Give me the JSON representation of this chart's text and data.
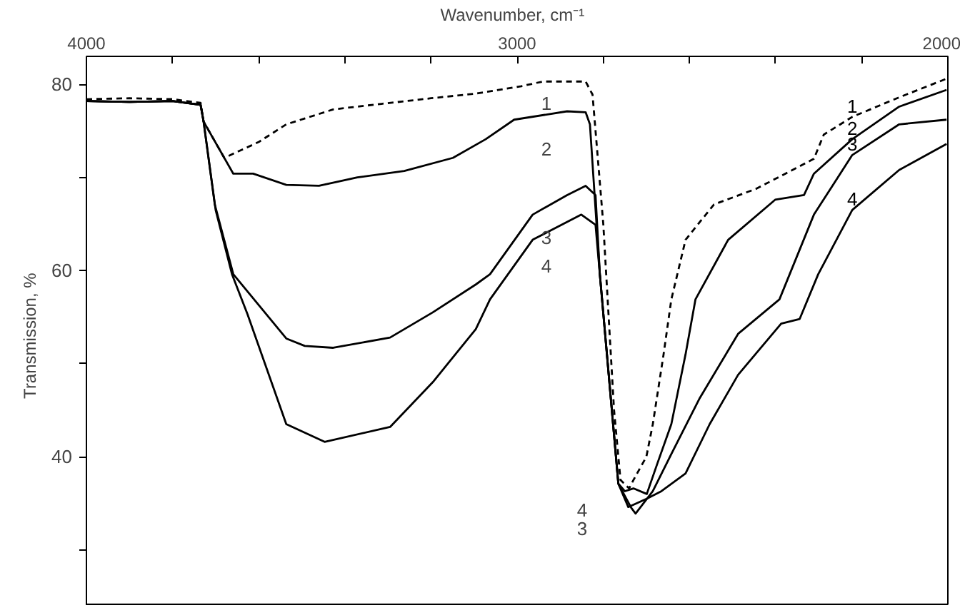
{
  "chart_data": {
    "type": "line",
    "xlabel": "Wavenumber,   cm⁻¹",
    "ylabel": "Transmission,   %",
    "xlim": [
      4000,
      2000
    ],
    "ylim": [
      24,
      83
    ],
    "xticks": [
      4000,
      {
        "value": 3800,
        "label": null
      },
      {
        "value": 3600,
        "label": null
      },
      {
        "value": 3400,
        "label": null
      },
      {
        "value": 3200,
        "label": null
      },
      3000,
      {
        "value": 2800,
        "label": null
      },
      {
        "value": 2600,
        "label": null
      },
      {
        "value": 2400,
        "label": null
      },
      {
        "value": 2200,
        "label": null
      },
      2000
    ],
    "yticks": [
      {
        "value": 30,
        "label": null
      },
      40,
      {
        "value": 50,
        "label": null
      },
      60,
      {
        "value": 70,
        "label": null
      },
      80
    ],
    "grid": false,
    "marker": "none",
    "series": [
      {
        "name": "1",
        "color": "#000000",
        "line_style": "dashed",
        "x": [
          4000,
          3900,
          3800,
          3735,
          3728,
          3680,
          3600,
          3536,
          3427,
          3315,
          3200,
          3096,
          2990,
          2940,
          2841,
          2825,
          2800,
          2775,
          2760,
          2740,
          2730,
          2700,
          2685,
          2660,
          2642,
          2609,
          2543,
          2444,
          2344,
          2311,
          2288,
          2222,
          2113,
          2003
        ],
        "values": [
          78.4,
          78.5,
          78.4,
          78.0,
          76.0,
          72.1,
          73.8,
          75.7,
          77.3,
          77.9,
          78.5,
          79.0,
          79.8,
          80.3,
          80.3,
          78.9,
          65,
          45,
          37.5,
          36.6,
          37.5,
          40,
          43.5,
          51,
          56.9,
          63.3,
          67.1,
          68.8,
          71.2,
          72.0,
          74.6,
          76.5,
          78.6,
          80.6
        ]
      },
      {
        "name": "2",
        "color": "#000000",
        "line_style": "solid",
        "x": [
          4000,
          3900,
          3800,
          3735,
          3728,
          3659,
          3613,
          3536,
          3460,
          3371,
          3262,
          3149,
          3073,
          3007,
          2884,
          2841,
          2831,
          2808,
          2765,
          2750,
          2730,
          2699,
          2675,
          2642,
          2609,
          2586,
          2510,
          2401,
          2334,
          2311,
          2222,
          2113,
          2003
        ],
        "values": [
          78.2,
          78.1,
          78.2,
          77.8,
          76.0,
          70.4,
          70.4,
          69.2,
          69.1,
          70.0,
          70.7,
          72.1,
          74.1,
          76.2,
          77.1,
          77.0,
          75.7,
          59.6,
          37.1,
          36.3,
          36.6,
          36.0,
          39.2,
          43.5,
          51.0,
          56.9,
          63.3,
          67.6,
          68.1,
          70.4,
          74.1,
          77.6,
          79.4
        ]
      },
      {
        "name": "3",
        "color": "#000000",
        "line_style": "solid",
        "x": [
          4000,
          3900,
          3800,
          3735,
          3728,
          3702,
          3659,
          3536,
          3493,
          3427,
          3295,
          3196,
          3096,
          3063,
          2964,
          2884,
          2841,
          2818,
          2808,
          2765,
          2735,
          2725,
          2685,
          2642,
          2576,
          2487,
          2391,
          2311,
          2222,
          2113,
          2003
        ],
        "values": [
          78.2,
          78.1,
          78.2,
          77.8,
          76.0,
          67.1,
          59.6,
          52.7,
          51.9,
          51.7,
          52.8,
          55.5,
          58.5,
          59.6,
          66.0,
          68.1,
          69.1,
          68.1,
          59.6,
          37.1,
          34.5,
          33.9,
          36.3,
          40.3,
          46.3,
          53.2,
          56.9,
          66.0,
          72.4,
          75.7,
          76.2
        ]
      },
      {
        "name": "4",
        "color": "#000000",
        "line_style": "solid",
        "x": [
          4000,
          3900,
          3800,
          3735,
          3728,
          3700,
          3662,
          3626,
          3536,
          3447,
          3295,
          3196,
          3096,
          3063,
          2964,
          2851,
          2818,
          2808,
          2765,
          2742,
          2699,
          2665,
          2609,
          2553,
          2487,
          2387,
          2344,
          2301,
          2222,
          2113,
          2003
        ],
        "values": [
          78.2,
          78.1,
          78.2,
          77.8,
          76.0,
          66.5,
          59.6,
          55.3,
          43.5,
          41.6,
          43.2,
          48.0,
          53.7,
          56.9,
          63.3,
          66.0,
          64.9,
          59.6,
          37.1,
          34.6,
          35.5,
          36.3,
          38.2,
          43.5,
          48.8,
          54.3,
          54.8,
          59.6,
          66.5,
          70.8,
          73.6
        ]
      }
    ],
    "annotations": [
      "1",
      "2",
      "3",
      "4",
      "4",
      "3"
    ]
  }
}
